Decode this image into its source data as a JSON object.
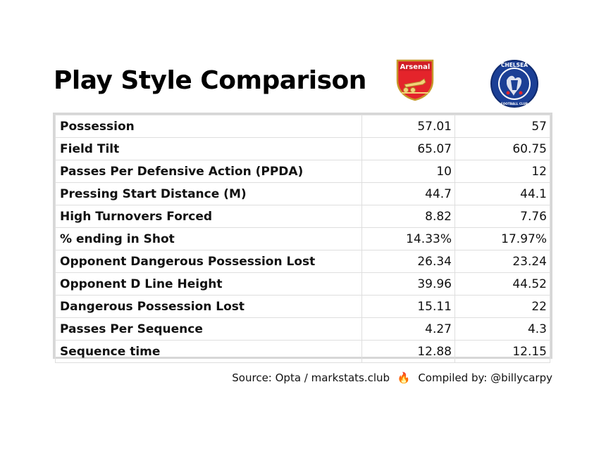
{
  "title": "Play Style Comparison",
  "teams": [
    {
      "name": "Arsenal",
      "logo_text": "Arsenal",
      "color": "#e4242b"
    },
    {
      "name": "Chelsea",
      "logo_text": "CHELSEA",
      "logo_subtext": "FOOTBALL CLUB",
      "color": "#1b3f95"
    }
  ],
  "chart_data": {
    "type": "table",
    "columns": [
      "",
      "Arsenal",
      "Chelsea"
    ],
    "rows": [
      {
        "metric": "Possession",
        "values": [
          "57.01",
          "57"
        ]
      },
      {
        "metric": "Field Tilt",
        "values": [
          "65.07",
          "60.75"
        ]
      },
      {
        "metric": "Passes Per Defensive Action (PPDA)",
        "values": [
          "10",
          "12"
        ]
      },
      {
        "metric": "Pressing Start Distance (M)",
        "values": [
          "44.7",
          "44.1"
        ]
      },
      {
        "metric": "High Turnovers Forced",
        "values": [
          "8.82",
          "7.76"
        ]
      },
      {
        "metric": "% ending in Shot",
        "values": [
          "14.33%",
          "17.97%"
        ]
      },
      {
        "metric": "Opponent Dangerous Possession Lost",
        "values": [
          "26.34",
          "23.24"
        ]
      },
      {
        "metric": "Opponent D Line Height",
        "values": [
          "39.96",
          "44.52"
        ]
      },
      {
        "metric": "Dangerous Possession Lost",
        "values": [
          "15.11",
          "22"
        ]
      },
      {
        "metric": "Passes Per Sequence",
        "values": [
          "4.27",
          "4.3"
        ]
      },
      {
        "metric": "Sequence time",
        "values": [
          "12.88",
          "12.15"
        ]
      }
    ]
  },
  "footer": {
    "source": "Source: Opta / markstats.club",
    "separator_icon": "fire-icon",
    "compiled": "Compiled by: @billycarpy"
  }
}
